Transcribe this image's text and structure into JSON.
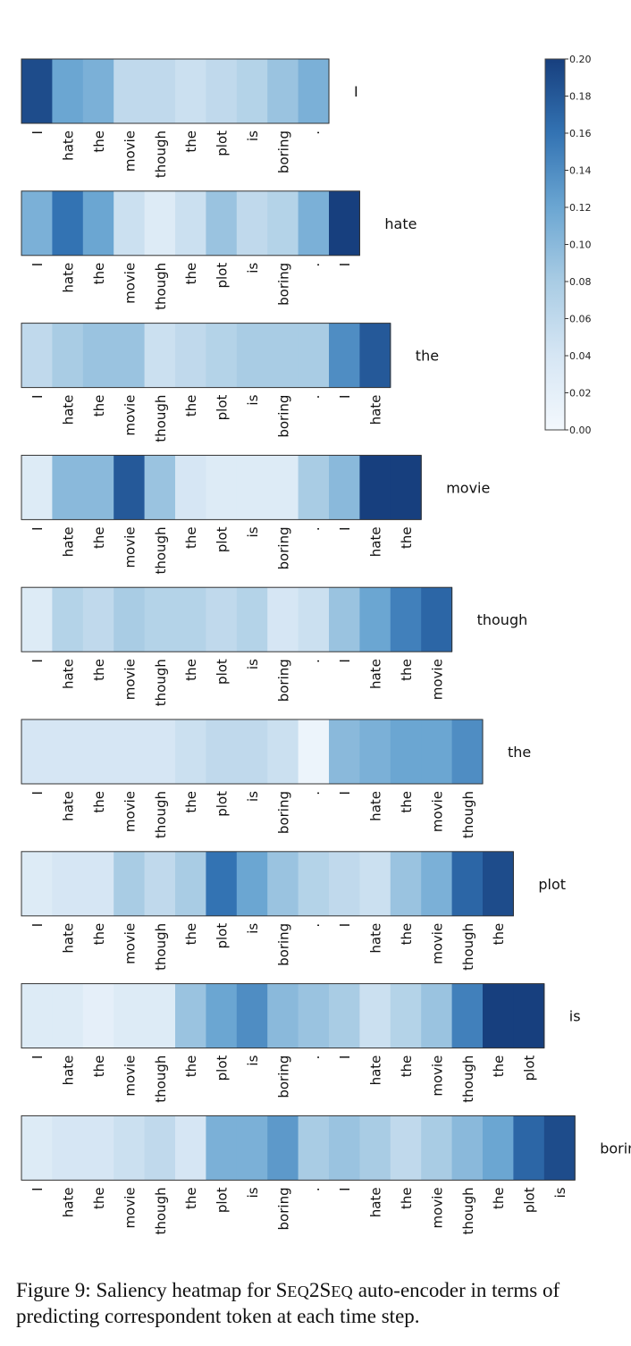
{
  "chart_data": {
    "type": "heatmap",
    "colorbar": {
      "min": 0.0,
      "max": 0.2,
      "ticks": [
        "0.00",
        "0.02",
        "0.04",
        "0.06",
        "0.08",
        "0.10",
        "0.12",
        "0.14",
        "0.16",
        "0.18",
        "0.20"
      ],
      "color_low": "#f3f8fd",
      "color_high": "#173f7e"
    },
    "source_tokens": [
      "I",
      "hate",
      "the",
      "movie",
      "though",
      "the",
      "plot",
      "is",
      "boring",
      "."
    ],
    "rows": [
      {
        "target": "I",
        "tokens": [
          "I",
          "hate",
          "the",
          "movie",
          "though",
          "the",
          "plot",
          "is",
          "boring",
          "."
        ],
        "values": [
          0.19,
          0.12,
          0.11,
          0.06,
          0.06,
          0.05,
          0.06,
          0.07,
          0.09,
          0.11
        ]
      },
      {
        "target": "hate",
        "tokens": [
          "I",
          "hate",
          "the",
          "movie",
          "though",
          "the",
          "plot",
          "is",
          "boring",
          ".",
          "I"
        ],
        "values": [
          0.11,
          0.16,
          0.12,
          0.05,
          0.03,
          0.05,
          0.09,
          0.06,
          0.07,
          0.11,
          0.2
        ]
      },
      {
        "target": "the",
        "tokens": [
          "I",
          "hate",
          "the",
          "movie",
          "though",
          "the",
          "plot",
          "is",
          "boring",
          ".",
          "I",
          "hate"
        ],
        "values": [
          0.06,
          0.08,
          0.09,
          0.09,
          0.05,
          0.06,
          0.07,
          0.08,
          0.08,
          0.08,
          0.14,
          0.18
        ]
      },
      {
        "target": "movie",
        "tokens": [
          "I",
          "hate",
          "the",
          "movie",
          "though",
          "the",
          "plot",
          "is",
          "boring",
          ".",
          "I",
          "hate",
          "the"
        ],
        "values": [
          0.03,
          0.1,
          0.1,
          0.18,
          0.09,
          0.04,
          0.03,
          0.03,
          0.03,
          0.08,
          0.1,
          0.2,
          0.2
        ]
      },
      {
        "target": "though",
        "tokens": [
          "I",
          "hate",
          "the",
          "movie",
          "though",
          "the",
          "plot",
          "is",
          "boring",
          ".",
          "I",
          "hate",
          "the",
          "movie"
        ],
        "values": [
          0.03,
          0.07,
          0.06,
          0.08,
          0.07,
          0.07,
          0.06,
          0.07,
          0.04,
          0.05,
          0.09,
          0.12,
          0.15,
          0.17
        ]
      },
      {
        "target": "the",
        "tokens": [
          "I",
          "hate",
          "the",
          "movie",
          "though",
          "the",
          "plot",
          "is",
          "boring",
          ".",
          "I",
          "hate",
          "the",
          "movie",
          "though"
        ],
        "values": [
          0.04,
          0.04,
          0.04,
          0.04,
          0.04,
          0.05,
          0.06,
          0.06,
          0.05,
          0.01,
          0.1,
          0.11,
          0.12,
          0.12,
          0.14
        ]
      },
      {
        "target": "plot",
        "tokens": [
          "I",
          "hate",
          "the",
          "movie",
          "though",
          "the",
          "plot",
          "is",
          "boring",
          ".",
          "I",
          "hate",
          "the",
          "movie",
          "though",
          "the"
        ],
        "values": [
          0.03,
          0.04,
          0.04,
          0.08,
          0.06,
          0.08,
          0.16,
          0.12,
          0.09,
          0.07,
          0.06,
          0.05,
          0.09,
          0.11,
          0.17,
          0.19
        ]
      },
      {
        "target": "is",
        "tokens": [
          "I",
          "hate",
          "the",
          "movie",
          "though",
          "the",
          "plot",
          "is",
          "boring",
          ".",
          "I",
          "hate",
          "the",
          "movie",
          "though",
          "the",
          "plot"
        ],
        "values": [
          0.03,
          0.03,
          0.02,
          0.03,
          0.03,
          0.09,
          0.12,
          0.14,
          0.1,
          0.09,
          0.08,
          0.05,
          0.07,
          0.09,
          0.15,
          0.2,
          0.2
        ]
      },
      {
        "target": "boring",
        "tokens": [
          "I",
          "hate",
          "the",
          "movie",
          "though",
          "the",
          "plot",
          "is",
          "boring",
          ".",
          "I",
          "hate",
          "the",
          "movie",
          "though",
          "the",
          "plot",
          "is"
        ],
        "values": [
          0.03,
          0.04,
          0.04,
          0.05,
          0.06,
          0.04,
          0.11,
          0.11,
          0.13,
          0.08,
          0.09,
          0.08,
          0.06,
          0.08,
          0.1,
          0.12,
          0.17,
          0.19
        ]
      }
    ]
  },
  "caption": {
    "prefix": "Figure 9: Saliency heatmap for ",
    "model_s1": "S",
    "model_r1": "EQ",
    "model_s2": "2S",
    "model_r2": "EQ",
    "suffix": " auto-encoder in terms of predicting correspondent token at each time step."
  }
}
